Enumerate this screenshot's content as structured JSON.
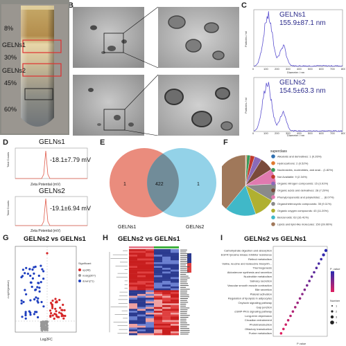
{
  "panel_letters": [
    "A",
    "B",
    "C",
    "D",
    "E",
    "F",
    "G",
    "H",
    "I"
  ],
  "panel_a": {
    "bands": [
      "8%",
      "GELNs1",
      "30%",
      "GELNs2",
      "45%",
      "60%"
    ]
  },
  "panel_c": {
    "sample1_name": "GELNs1",
    "sample1_size": "155.9±87.1 nm",
    "sample2_name": "GELNs2",
    "sample2_size": "154.5±63.3 nm",
    "xlabel": "Diameter / nm",
    "ylabel": "Particles / ml",
    "ticks": [
      "0",
      "100",
      "200",
      "300",
      "400",
      "500",
      "600",
      "700",
      "800"
    ]
  },
  "panel_d": {
    "sample1_name": "GELNs1",
    "sample1_value": "-18.1±7.79 mV",
    "sample2_name": "GELNs2",
    "sample2_value": "-19.1±6.94 mV",
    "xlabel": "Zeta Potential (mV)",
    "ylabel": "Total Counts"
  },
  "panel_e": {
    "left_only": "1",
    "shared": "422",
    "right_only": "1",
    "left_label": "GELNs1",
    "right_label": "GELNs2",
    "colors": {
      "left": "#e8806f",
      "right": "#6fc3e0"
    }
  },
  "panel_f": {
    "legend_title": "superclass",
    "items": [
      {
        "label": "Alkaloids and derivatives: 1 (0.26%)",
        "color": "#2f6fb0"
      },
      {
        "label": "Hydrocarbons: 2 (0.52%)",
        "color": "#e07a2f"
      },
      {
        "label": "Nucleosides, nucleotides, and anal... (1.82%)",
        "color": "#3a9a5a"
      },
      {
        "label": "Not Available: 9 (2.34%)",
        "color": "#c0392b"
      },
      {
        "label": "Organic nitrogen compounds: 15 (3.91%)",
        "color": "#8a6ab8"
      },
      {
        "label": "Organic acids and derivatives: 28 (7.29%)",
        "color": "#7a4a3a"
      },
      {
        "label": "Phenylpropanoids and polyketides: ... (8.07%)",
        "color": "#e07ab0"
      },
      {
        "label": "Organoheterocyclic compounds: 35 (9.11%)",
        "color": "#8a8a8a"
      },
      {
        "label": "Organic oxygen compounds: 43 (11.20%)",
        "color": "#b0b030"
      },
      {
        "label": "Benzenoids: 63 (16.41%)",
        "color": "#40b8c8"
      },
      {
        "label": "Lipids and lipid-like molecules: 150 (39.06%)",
        "color": "#a0785a"
      }
    ]
  },
  "panel_g": {
    "title": "GELNs2 vs GELNs1",
    "xlabel": "Log2FC",
    "ylabel": "-Log10(pvalue)",
    "legend_title": "Significant",
    "legend": [
      {
        "label": "up(46)",
        "color": "#d62728"
      },
      {
        "label": "nosig(307)",
        "color": "#999999"
      },
      {
        "label": "down(71)",
        "color": "#1f3fbf"
      }
    ]
  },
  "panel_h": {
    "title": "GELNs2 vs GELNs1"
  },
  "panel_i": {
    "title": "GELNs2 vs GELNs1",
    "xlabel": "P value",
    "legend_title": "P_value",
    "size_title": "Number",
    "size_values": [
      "1",
      "2",
      "3",
      "4"
    ],
    "pathways": [
      "Carbohydrate digestion and absorption",
      "EGFR tyrosine kinase inhibitor resistance",
      "Retinol metabolism",
      "Valine, leucine and isoleucine biosynth...",
      "Thermogenesis",
      "Aldosterone synthesis and secretion",
      "Nucleotide metabolism",
      "Salivary secretion",
      "Vascular smooth muscle contraction",
      "Bile secretion",
      "Platelet activation",
      "Regulation of lipolysis in adipocytes",
      "Oxytocin signaling pathway",
      "Gap junction",
      "cGMP-PKG signaling pathway",
      "Long-term depression",
      "Circadian entrainment",
      "Phototransduction",
      "Olfactory transduction",
      "Purine metabolism"
    ]
  }
}
